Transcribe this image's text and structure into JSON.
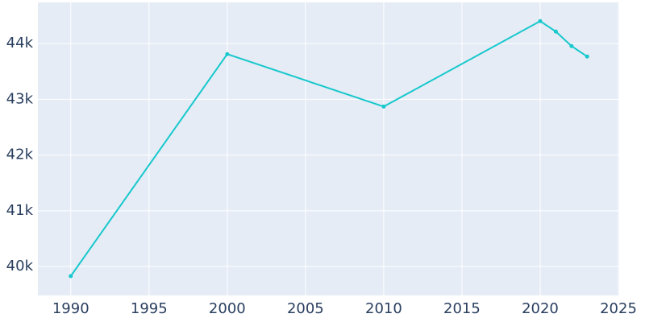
{
  "chart_data": {
    "type": "line",
    "x": [
      1990,
      2000,
      2010,
      2020,
      2021,
      2022,
      2023
    ],
    "series": [
      {
        "color": "#17c8cc",
        "values": [
          39827,
          43812,
          42870,
          44404,
          44217,
          43957,
          43769
        ]
      }
    ],
    "xlim": [
      1987.9,
      2025.05
    ],
    "xticks": [
      1990,
      1995,
      2000,
      2005,
      2010,
      2015,
      2020,
      2025
    ],
    "ylim": [
      39480,
      44740
    ],
    "yticks": [
      {
        "value": 40000,
        "label": "40k"
      },
      {
        "value": 41000,
        "label": "41k"
      },
      {
        "value": 42000,
        "label": "42k"
      },
      {
        "value": 43000,
        "label": "43k"
      },
      {
        "value": 44000,
        "label": "44k"
      }
    ],
    "grid": true
  }
}
